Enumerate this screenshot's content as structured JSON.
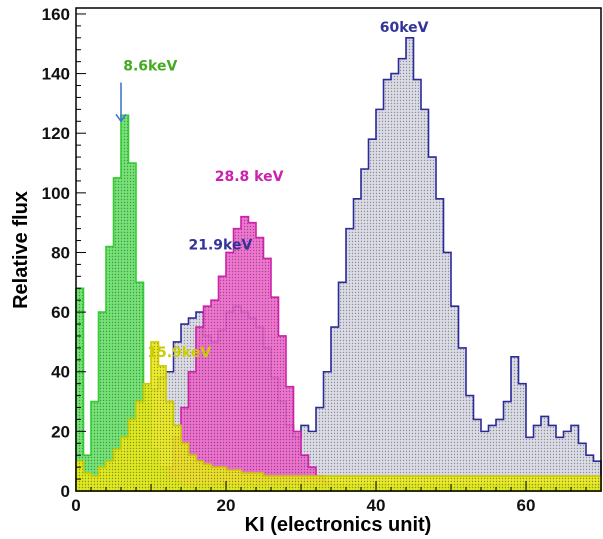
{
  "chart_data": {
    "type": "histogram",
    "xlabel": "KI (electronics unit)",
    "ylabel": "Relative flux",
    "xlim": [
      0,
      70
    ],
    "ylim": [
      0,
      162
    ],
    "bin_width": 1,
    "x_ticks": [
      0,
      20,
      40,
      60
    ],
    "y_ticks": [
      0,
      20,
      40,
      60,
      80,
      100,
      120,
      140,
      160
    ],
    "grid": false,
    "series": [
      {
        "name": "60keV",
        "color": "#2b2b9a",
        "fill": "#d8d8e4",
        "x_start": 0,
        "values": [
          4,
          3,
          3,
          5,
          5,
          8,
          12,
          18,
          25,
          30,
          34,
          38,
          40,
          50,
          56,
          58,
          60,
          52,
          50,
          54,
          60,
          62,
          60,
          58,
          55,
          48,
          38,
          30,
          22,
          18,
          22,
          20,
          28,
          40,
          55,
          70,
          88,
          98,
          108,
          118,
          128,
          138,
          140,
          145,
          152,
          138,
          128,
          112,
          98,
          80,
          62,
          48,
          32,
          24,
          20,
          22,
          24,
          30,
          45,
          36,
          18,
          22,
          25,
          22,
          18,
          20,
          22,
          16,
          12,
          10
        ]
      },
      {
        "name": "28.8 keV",
        "color": "#cc22aa",
        "fill": "#ee66cc",
        "x_start": 0,
        "values": [
          0,
          0,
          0,
          0,
          0,
          0,
          0,
          0,
          0,
          0,
          2,
          4,
          8,
          18,
          28,
          40,
          55,
          62,
          64,
          72,
          80,
          88,
          92,
          90,
          85,
          78,
          65,
          52,
          35,
          20,
          12,
          8,
          5,
          3,
          2,
          2,
          1,
          1,
          1,
          1,
          1,
          1,
          1,
          1,
          1,
          1,
          1,
          1,
          1,
          1,
          1,
          1,
          1,
          1,
          1,
          1,
          1,
          1,
          1,
          1,
          1,
          1,
          1,
          1,
          1,
          1,
          1,
          1,
          1,
          1
        ]
      },
      {
        "name": "8.6keV",
        "color": "#33cc33",
        "fill": "#66e066",
        "x_start": 0,
        "values": [
          68,
          12,
          30,
          60,
          82,
          105,
          126,
          110,
          70,
          35,
          14,
          8,
          4,
          3,
          2,
          2,
          2,
          2,
          2,
          2,
          2,
          2,
          2,
          2,
          2,
          2,
          2,
          2,
          2,
          2,
          2,
          2,
          2,
          2,
          2,
          2,
          2,
          2,
          2,
          2,
          2,
          2,
          2,
          2,
          2,
          2,
          2,
          2,
          2,
          2,
          2,
          2,
          2,
          2,
          2,
          2,
          2,
          2,
          2,
          2,
          2,
          2,
          2,
          2,
          2,
          2,
          2,
          2,
          2,
          2
        ]
      },
      {
        "name": "15.9keV",
        "color": "#cccc00",
        "fill": "#eaea1a",
        "x_start": 0,
        "values": [
          10,
          6,
          5,
          8,
          10,
          14,
          18,
          24,
          30,
          36,
          50,
          42,
          30,
          22,
          16,
          12,
          10,
          9,
          8,
          8,
          7,
          7,
          6,
          6,
          6,
          5,
          5,
          5,
          5,
          5,
          5,
          5,
          5,
          5,
          5,
          5,
          5,
          5,
          5,
          5,
          5,
          5,
          5,
          5,
          5,
          5,
          5,
          5,
          5,
          5,
          5,
          5,
          5,
          5,
          5,
          5,
          5,
          5,
          5,
          5,
          5,
          5,
          5,
          5,
          5,
          5,
          5,
          5,
          5,
          5
        ]
      }
    ],
    "annotations": [
      {
        "text": "60keV",
        "color": "#333399",
        "x": 40.5,
        "y": 154
      },
      {
        "text": "28.8 keV",
        "color": "#cc22aa",
        "x": 18.5,
        "y": 104
      },
      {
        "text": "8.6keV",
        "color": "#44aa22",
        "x": 6.3,
        "y": 141
      },
      {
        "text": "21.9keV",
        "color": "#333399",
        "x": 15.0,
        "y": 81
      },
      {
        "text": "15.9keV",
        "color": "#cccc00",
        "x": 9.5,
        "y": 45
      }
    ],
    "arrow": {
      "color": "#4477cc",
      "x": 6.0,
      "y_from": 137,
      "y_to": 124
    }
  }
}
